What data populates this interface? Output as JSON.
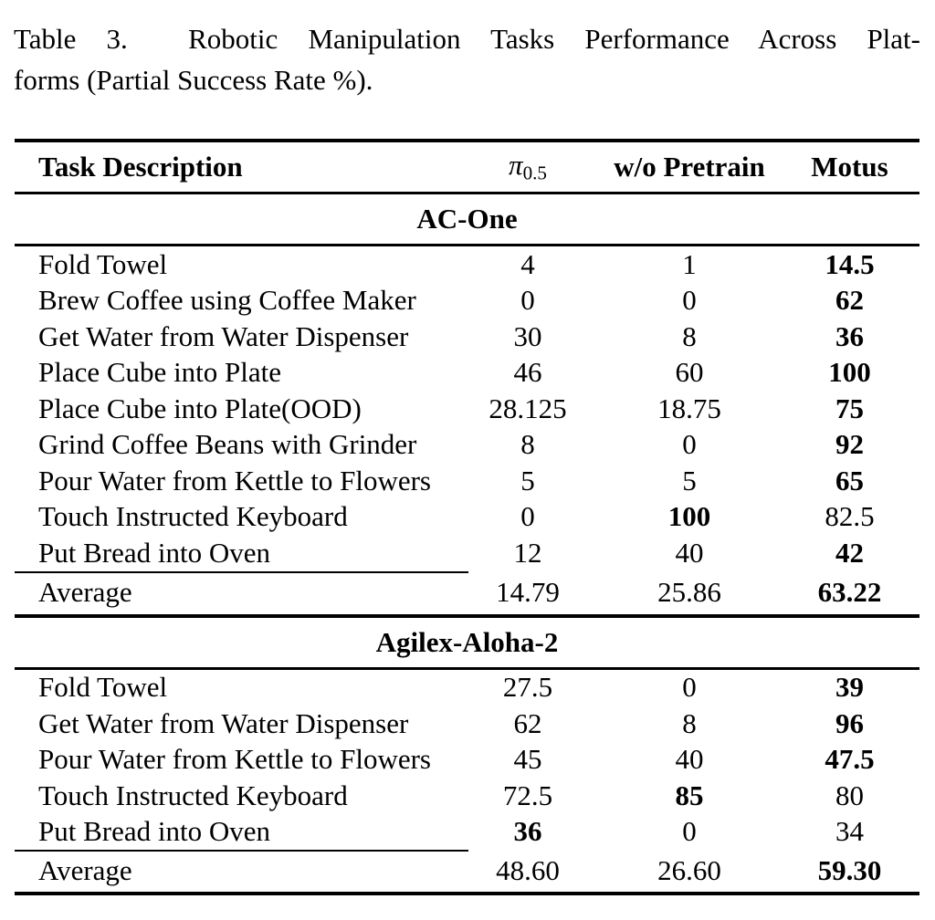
{
  "caption": {
    "line1": "Table 3.  Robotic Manipulation Tasks Performance Across Plat-",
    "line2": "forms (Partial Success Rate %)."
  },
  "table": {
    "header": {
      "task": "Task Description",
      "pi": {
        "symbol": "π",
        "sub": "0.5"
      },
      "col3": "w/o Pretrain",
      "col4": "Motus"
    },
    "sections": [
      {
        "name": "AC-One",
        "rows": [
          {
            "task": "Fold Towel",
            "c2": {
              "v": "4",
              "b": false
            },
            "c3": {
              "v": "1",
              "b": false
            },
            "c4": {
              "v": "14.5",
              "b": true
            }
          },
          {
            "task": "Brew Coffee using Coffee Maker",
            "c2": {
              "v": "0",
              "b": false
            },
            "c3": {
              "v": "0",
              "b": false
            },
            "c4": {
              "v": "62",
              "b": true
            }
          },
          {
            "task": "Get Water from Water Dispenser",
            "c2": {
              "v": "30",
              "b": false
            },
            "c3": {
              "v": "8",
              "b": false
            },
            "c4": {
              "v": "36",
              "b": true
            }
          },
          {
            "task": "Place Cube into Plate",
            "c2": {
              "v": "46",
              "b": false
            },
            "c3": {
              "v": "60",
              "b": false
            },
            "c4": {
              "v": "100",
              "b": true
            }
          },
          {
            "task": "Place Cube into Plate(OOD)",
            "c2": {
              "v": "28.125",
              "b": false
            },
            "c3": {
              "v": "18.75",
              "b": false
            },
            "c4": {
              "v": "75",
              "b": true
            }
          },
          {
            "task": "Grind Coffee Beans with Grinder",
            "c2": {
              "v": "8",
              "b": false
            },
            "c3": {
              "v": "0",
              "b": false
            },
            "c4": {
              "v": "92",
              "b": true
            }
          },
          {
            "task": "Pour Water from Kettle to Flowers",
            "c2": {
              "v": "5",
              "b": false
            },
            "c3": {
              "v": "5",
              "b": false
            },
            "c4": {
              "v": "65",
              "b": true
            }
          },
          {
            "task": "Touch Instructed Keyboard",
            "c2": {
              "v": "0",
              "b": false
            },
            "c3": {
              "v": "100",
              "b": true
            },
            "c4": {
              "v": "82.5",
              "b": false
            }
          },
          {
            "task": "Put Bread into Oven",
            "c2": {
              "v": "12",
              "b": false
            },
            "c3": {
              "v": "40",
              "b": false
            },
            "c4": {
              "v": "42",
              "b": true
            }
          }
        ],
        "average": {
          "label": "Average",
          "c2": {
            "v": "14.79",
            "b": false
          },
          "c3": {
            "v": "25.86",
            "b": false
          },
          "c4": {
            "v": "63.22",
            "b": true
          }
        }
      },
      {
        "name": "Agilex-Aloha-2",
        "rows": [
          {
            "task": "Fold Towel",
            "c2": {
              "v": "27.5",
              "b": false
            },
            "c3": {
              "v": "0",
              "b": false
            },
            "c4": {
              "v": "39",
              "b": true
            }
          },
          {
            "task": "Get Water from Water Dispenser",
            "c2": {
              "v": "62",
              "b": false
            },
            "c3": {
              "v": "8",
              "b": false
            },
            "c4": {
              "v": "96",
              "b": true
            }
          },
          {
            "task": "Pour Water from Kettle to Flowers",
            "c2": {
              "v": "45",
              "b": false
            },
            "c3": {
              "v": "40",
              "b": false
            },
            "c4": {
              "v": "47.5",
              "b": true
            }
          },
          {
            "task": "Touch Instructed Keyboard",
            "c2": {
              "v": "72.5",
              "b": false
            },
            "c3": {
              "v": "85",
              "b": true
            },
            "c4": {
              "v": "80",
              "b": false
            }
          },
          {
            "task": "Put Bread into Oven",
            "c2": {
              "v": "36",
              "b": true
            },
            "c3": {
              "v": "0",
              "b": false
            },
            "c4": {
              "v": "34",
              "b": false
            }
          }
        ],
        "average": {
          "label": "Average",
          "c2": {
            "v": "48.60",
            "b": false
          },
          "c3": {
            "v": "26.60",
            "b": false
          },
          "c4": {
            "v": "59.30",
            "b": true
          }
        }
      }
    ]
  },
  "colors": {
    "text": "#000000",
    "background": "#ffffff",
    "rule": "#000000"
  }
}
